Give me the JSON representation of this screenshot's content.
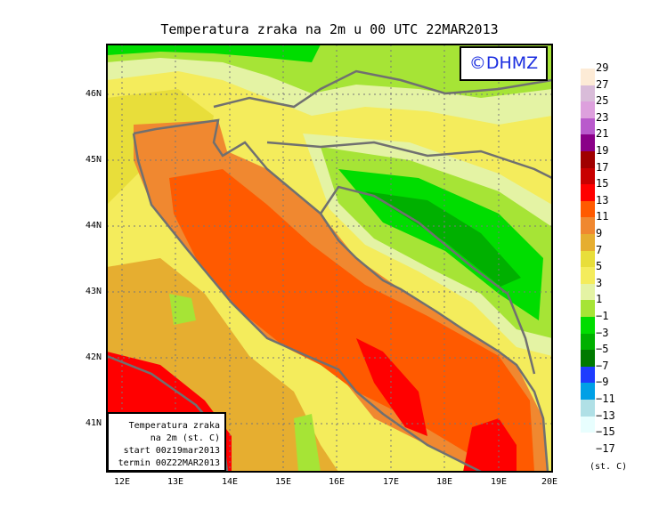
{
  "title": "Temperatura zraka na 2m u 00 UTC 22MAR2013",
  "logo": "©DHMZ",
  "info_box": [
    "Temperatura zraka",
    "na 2m (st. C)",
    "start 00z19mar2013",
    "termin 00Z22MAR2013"
  ],
  "lat_labels": [
    "46N",
    "45N",
    "44N",
    "43N",
    "42N",
    "41N"
  ],
  "lon_labels": [
    "12E",
    "13E",
    "14E",
    "15E",
    "16E",
    "17E",
    "18E",
    "19E",
    "20E"
  ],
  "legend": {
    "labels": [
      "29",
      "27",
      "25",
      "23",
      "21",
      "19",
      "17",
      "15",
      "13",
      "11",
      "9",
      "7",
      "5",
      "3",
      "1",
      "−1",
      "−3",
      "−5",
      "−7",
      "−9",
      "−11",
      "−13",
      "−15",
      "−17"
    ],
    "colors": [
      "#fdebd6",
      "#d9bcd9",
      "#dda0dd",
      "#b95acc",
      "#8a0088",
      "#a00000",
      "#c80000",
      "#ff0000",
      "#ff5a00",
      "#f08830",
      "#e6ae30",
      "#e8de3a",
      "#f4ec5c",
      "#e4f3a4",
      "#a6e436",
      "#00dd00",
      "#00b000",
      "#007a00",
      "#1e3cff",
      "#00a0e6",
      "#b0e0e6",
      "#e8fefe",
      "#ffffff"
    ],
    "units": "(st. C)"
  }
}
